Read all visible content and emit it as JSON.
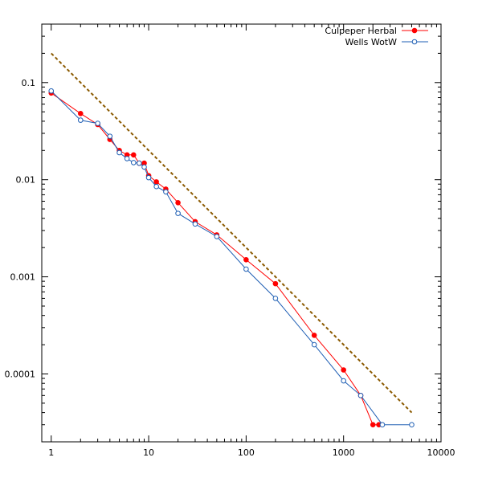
{
  "chart_data": {
    "type": "line",
    "title": "",
    "xlabel": "",
    "ylabel": "",
    "x_scale": "log",
    "y_scale": "log",
    "xlim": [
      0.8,
      10000
    ],
    "ylim": [
      2e-05,
      0.4
    ],
    "grid": false,
    "legend_position": "top-right",
    "x_ticks": [
      {
        "value": 1,
        "label": "1"
      },
      {
        "value": 10,
        "label": "10"
      },
      {
        "value": 100,
        "label": "100"
      },
      {
        "value": 1000,
        "label": "1000"
      },
      {
        "value": 10000,
        "label": "10000"
      }
    ],
    "y_ticks": [
      {
        "value": 0.1,
        "label": "0.1"
      },
      {
        "value": 0.01,
        "label": "0.01"
      },
      {
        "value": 0.001,
        "label": "0.001"
      },
      {
        "value": 0.0001,
        "label": "0.0001"
      }
    ],
    "series": [
      {
        "name": "Culpeper Herbal",
        "color": "#ff0000",
        "marker": "filled-circle",
        "x": [
          1,
          2,
          3,
          4,
          5,
          6,
          7,
          8,
          9,
          10,
          12,
          15,
          20,
          30,
          50,
          100,
          200,
          500,
          1000,
          1500,
          2000,
          2300
        ],
        "y": [
          0.078,
          0.048,
          0.037,
          0.026,
          0.02,
          0.018,
          0.018,
          0.0148,
          0.0148,
          0.011,
          0.0095,
          0.008,
          0.0058,
          0.0037,
          0.0027,
          0.0015,
          0.00085,
          0.00025,
          0.00011,
          6e-05,
          3e-05,
          3e-05
        ]
      },
      {
        "name": "Wells WotW",
        "color": "#1f5fb4",
        "marker": "open-circle",
        "x": [
          1,
          2,
          3,
          4,
          5,
          6,
          7,
          8,
          9,
          10,
          12,
          15,
          20,
          30,
          50,
          100,
          200,
          500,
          1000,
          1500,
          2500,
          5000
        ],
        "y": [
          0.082,
          0.041,
          0.038,
          0.028,
          0.019,
          0.0165,
          0.015,
          0.0148,
          0.0135,
          0.0105,
          0.0085,
          0.0075,
          0.0045,
          0.0035,
          0.0026,
          0.0012,
          0.0006,
          0.0002,
          8.5e-05,
          6e-05,
          3e-05,
          3e-05
        ]
      },
      {
        "color": "#8b5a00",
        "style": "dashed",
        "x": [
          1,
          5000
        ],
        "y": [
          0.2,
          4e-05
        ]
      }
    ]
  }
}
